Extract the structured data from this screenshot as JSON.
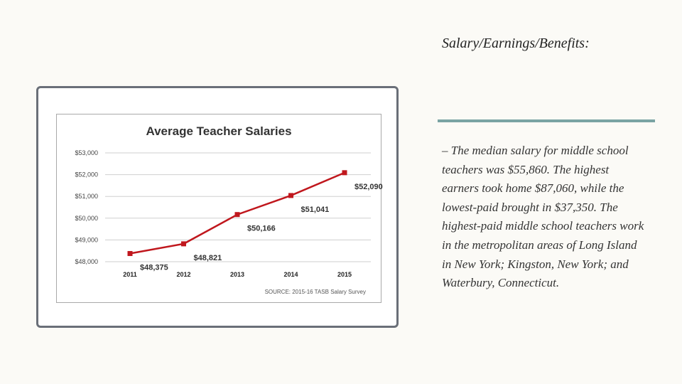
{
  "slide": {
    "title": "Salary/Earnings/Benefits:",
    "body": "–  The median salary for middle school teachers was $55,860. The highest earners took home $87,060, while the lowest-paid brought in $37,350. The highest-paid middle school teachers work in the metropolitan areas of Long Island in New York; Kingston, New York; and Waterbury, Connecticut."
  },
  "chart_data": {
    "type": "line",
    "title": "Average Teacher Salaries",
    "source": "SOURCE: 2015-16 TASB Salary Survey",
    "categories": [
      "2011",
      "2012",
      "2013",
      "2014",
      "2015"
    ],
    "values": [
      48375,
      48821,
      50166,
      51041,
      52090
    ],
    "data_labels": [
      "$48,375",
      "$48,821",
      "$50,166",
      "$51,041",
      "$52,090"
    ],
    "ylim": [
      48000,
      53000
    ],
    "yticks": [
      48000,
      49000,
      50000,
      51000,
      52000,
      53000
    ],
    "ytick_labels": [
      "$48,000",
      "$49,000",
      "$50,000",
      "$51,000",
      "$52,000",
      "$53,000"
    ],
    "grid": true,
    "line_color": "#c0171d"
  }
}
